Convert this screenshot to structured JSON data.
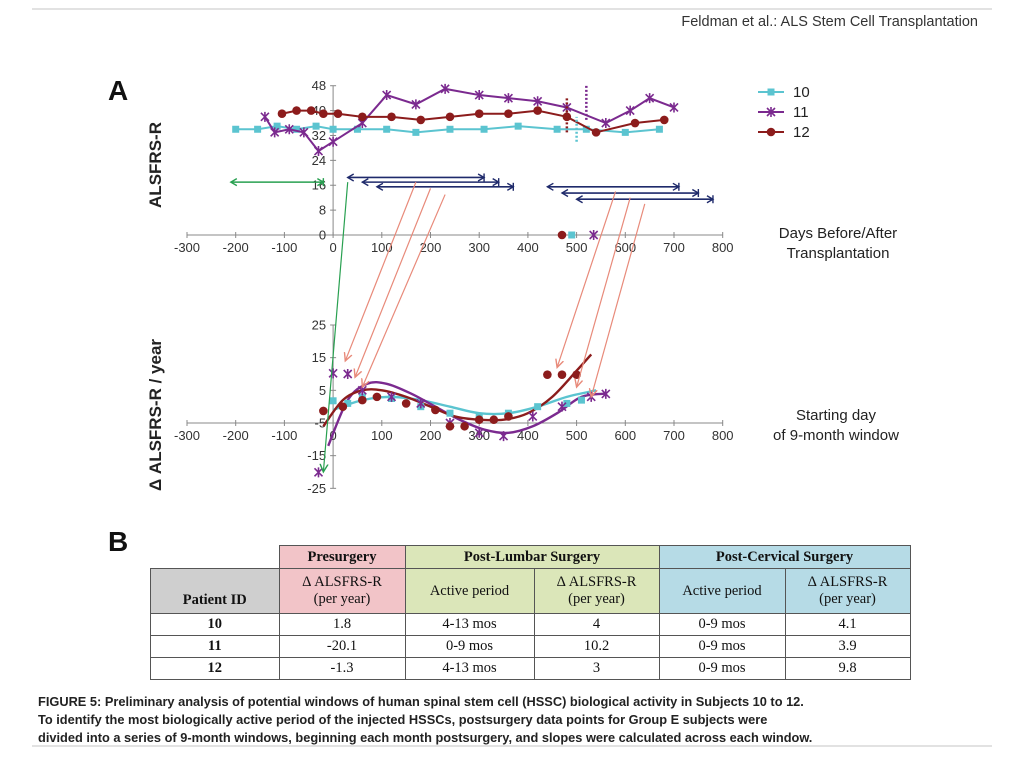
{
  "header": {
    "running_title": "Feldman et al.: ALS Stem Cell Transplantation"
  },
  "panels": {
    "a": "A",
    "b": "B"
  },
  "colors": {
    "s10": "#5bc4d0",
    "s11": "#7b2a8f",
    "s12": "#8c1c1c",
    "green_arrow": "#28a050",
    "navy_bar": "#1f2a6b",
    "red_arrow": "#e88a7a"
  },
  "chart_data": [
    {
      "type": "line",
      "ylabel": "ALSFRS-R",
      "xlabel": "Days Before/After Transplantation",
      "xlim": [
        -300,
        800
      ],
      "ylim": [
        0,
        48
      ],
      "xticks": [
        "-300",
        "-200",
        "-100",
        "0",
        "100",
        "200",
        "300",
        "400",
        "500",
        "600",
        "700",
        "800"
      ],
      "yticks": [
        "0",
        "8",
        "16",
        "24",
        "32",
        "40",
        "48"
      ],
      "legend_position": "right",
      "series": [
        {
          "name": "10",
          "color": "#5bc4d0",
          "marker": "square",
          "x": [
            -200,
            -155,
            -115,
            -75,
            -35,
            0,
            50,
            110,
            170,
            240,
            310,
            380,
            460,
            520,
            600,
            670
          ],
          "y": [
            34,
            34,
            35,
            34,
            35,
            34,
            34,
            34,
            33,
            34,
            34,
            35,
            34,
            34,
            33,
            34
          ]
        },
        {
          "name": "11",
          "color": "#7b2a8f",
          "marker": "x",
          "x": [
            -140,
            -120,
            -90,
            -60,
            -30,
            0,
            60,
            110,
            170,
            230,
            300,
            360,
            420,
            480,
            560,
            610,
            650,
            700
          ],
          "y": [
            38,
            33,
            34,
            33,
            27,
            30,
            36,
            45,
            42,
            47,
            45,
            44,
            43,
            41,
            36,
            40,
            44,
            41
          ]
        },
        {
          "name": "12",
          "color": "#8c1c1c",
          "marker": "circle",
          "x": [
            -105,
            -75,
            -45,
            -20,
            10,
            60,
            120,
            180,
            240,
            300,
            360,
            420,
            480,
            540,
            620,
            680
          ],
          "y": [
            39,
            40,
            40,
            39,
            39,
            38,
            38,
            37,
            38,
            39,
            39,
            40,
            38,
            33,
            36,
            37
          ]
        }
      ],
      "points_at_zero": [
        {
          "series": "12",
          "x": 470,
          "y": 0
        },
        {
          "series": "10",
          "x": 490,
          "y": 0
        },
        {
          "series": "11",
          "x": 535,
          "y": 0
        }
      ],
      "window_bars": [
        {
          "from": -210,
          "to": -20,
          "y": 17,
          "color": "green"
        },
        {
          "from": 30,
          "to": 310,
          "y": 18.5,
          "color": "navy"
        },
        {
          "from": 60,
          "to": 340,
          "y": 17,
          "color": "navy"
        },
        {
          "from": 90,
          "to": 370,
          "y": 15.5,
          "color": "navy"
        },
        {
          "from": 440,
          "to": 710,
          "y": 15.5,
          "color": "navy"
        },
        {
          "from": 470,
          "to": 750,
          "y": 13.5,
          "color": "navy"
        },
        {
          "from": 500,
          "to": 780,
          "y": 11.5,
          "color": "navy"
        }
      ]
    },
    {
      "type": "scatter",
      "ylabel": "Δ ALSFRS-R / year",
      "xlabel": "Starting day of 9-month window",
      "xlim": [
        -300,
        800
      ],
      "ylim": [
        -25,
        25
      ],
      "xticks": [
        "-300",
        "-200",
        "-100",
        "0",
        "100",
        "200",
        "300",
        "400",
        "500",
        "600",
        "700",
        "800"
      ],
      "yticks": [
        "-25",
        "-15",
        "-5",
        "5",
        "15",
        "25"
      ],
      "series": [
        {
          "name": "10",
          "color": "#5bc4d0",
          "marker": "square",
          "x": [
            0,
            30,
            60,
            120,
            180,
            240,
            300,
            360,
            420,
            480,
            510
          ],
          "y": [
            1.8,
            1,
            3,
            2.5,
            0,
            -2,
            -3,
            -2,
            0,
            1,
            2
          ]
        },
        {
          "name": "11",
          "color": "#7b2a8f",
          "marker": "x",
          "x": [
            -30,
            0,
            30,
            60,
            120,
            180,
            240,
            300,
            350,
            410,
            470,
            530,
            560
          ],
          "y": [
            -20.1,
            10.2,
            10,
            5,
            3,
            1,
            -5,
            -8,
            -9,
            -3,
            0,
            3,
            3.9
          ]
        },
        {
          "name": "12",
          "color": "#8c1c1c",
          "marker": "circle",
          "x": [
            -20,
            20,
            60,
            90,
            150,
            210,
            240,
            270,
            300,
            330,
            360,
            440,
            470,
            500
          ],
          "y": [
            -1.3,
            0,
            2,
            3,
            1,
            -1,
            -6,
            -6,
            -4,
            -4,
            -3,
            9.8,
            9.8,
            9.8
          ]
        }
      ],
      "trend_curves": [
        {
          "series": "10",
          "x": [
            0,
            60,
            120,
            180,
            240,
            300,
            360,
            420,
            480,
            540
          ],
          "y": [
            -1,
            2,
            3,
            2,
            0,
            -2,
            -2,
            0,
            3,
            5
          ]
        },
        {
          "series": "11",
          "x": [
            -10,
            30,
            70,
            110,
            160,
            210,
            260,
            310,
            360,
            410,
            460,
            510,
            560
          ],
          "y": [
            -12,
            2,
            7,
            7,
            4,
            0,
            -4,
            -7,
            -8,
            -6,
            -2,
            3,
            4
          ]
        },
        {
          "series": "12",
          "x": [
            -20,
            20,
            60,
            100,
            150,
            200,
            250,
            300,
            350,
            400,
            450,
            500,
            530
          ],
          "y": [
            -6,
            2,
            5,
            5,
            3,
            0,
            -3,
            -4,
            -4,
            -2,
            3,
            11,
            16
          ]
        }
      ],
      "arrows": [
        {
          "from": [
            30,
            17
          ],
          "to": [
            -20,
            -20
          ]
        },
        {
          "from": [
            170,
            17
          ],
          "to": [
            25,
            14
          ]
        },
        {
          "from": [
            200,
            15
          ],
          "to": [
            45,
            9
          ]
        },
        {
          "from": [
            230,
            13
          ],
          "to": [
            60,
            6
          ]
        },
        {
          "from": [
            580,
            14
          ],
          "to": [
            460,
            12
          ]
        },
        {
          "from": [
            610,
            12
          ],
          "to": [
            500,
            6
          ]
        },
        {
          "from": [
            640,
            10
          ],
          "to": [
            530,
            3
          ]
        }
      ]
    }
  ],
  "table": {
    "groups": {
      "presurgery": "Presurgery",
      "lumbar": "Post-Lumbar Surgery",
      "cervical": "Post-Cervical Surgery"
    },
    "patient_id_header": "Patient ID",
    "sub": {
      "pre_delta_l1": "Δ ALSFRS-R",
      "pre_delta_l2": "(per year)",
      "lum_active": "Active period",
      "lum_delta_l1": "Δ ALSFRS-R",
      "lum_delta_l2": "(per year)",
      "cer_active": "Active period",
      "cer_delta_l1": "Δ ALSFRS-R",
      "cer_delta_l2": "(per year)"
    },
    "rows": [
      {
        "id": "10",
        "pre": "1.8",
        "lum_period": "4-13 mos",
        "lum_delta": "4",
        "cer_period": "0-9 mos",
        "cer_delta": "4.1"
      },
      {
        "id": "11",
        "pre": "-20.1",
        "lum_period": "0-9 mos",
        "lum_delta": "10.2",
        "cer_period": "0-9 mos",
        "cer_delta": "3.9"
      },
      {
        "id": "12",
        "pre": "-1.3",
        "lum_period": "4-13 mos",
        "lum_delta": "3",
        "cer_period": "0-9 mos",
        "cer_delta": "9.8"
      }
    ]
  },
  "caption": {
    "line1": "FIGURE 5: Preliminary analysis of potential windows of human spinal stem cell (HSSC) biological activity in Subjects 10 to 12.",
    "line2": "To identify the most biologically active period of the injected HSSCs, postsurgery data points for Group E subjects were",
    "line3": "divided into a series of 9-month windows, beginning each month postsurgery, and slopes were calculated across each window."
  }
}
